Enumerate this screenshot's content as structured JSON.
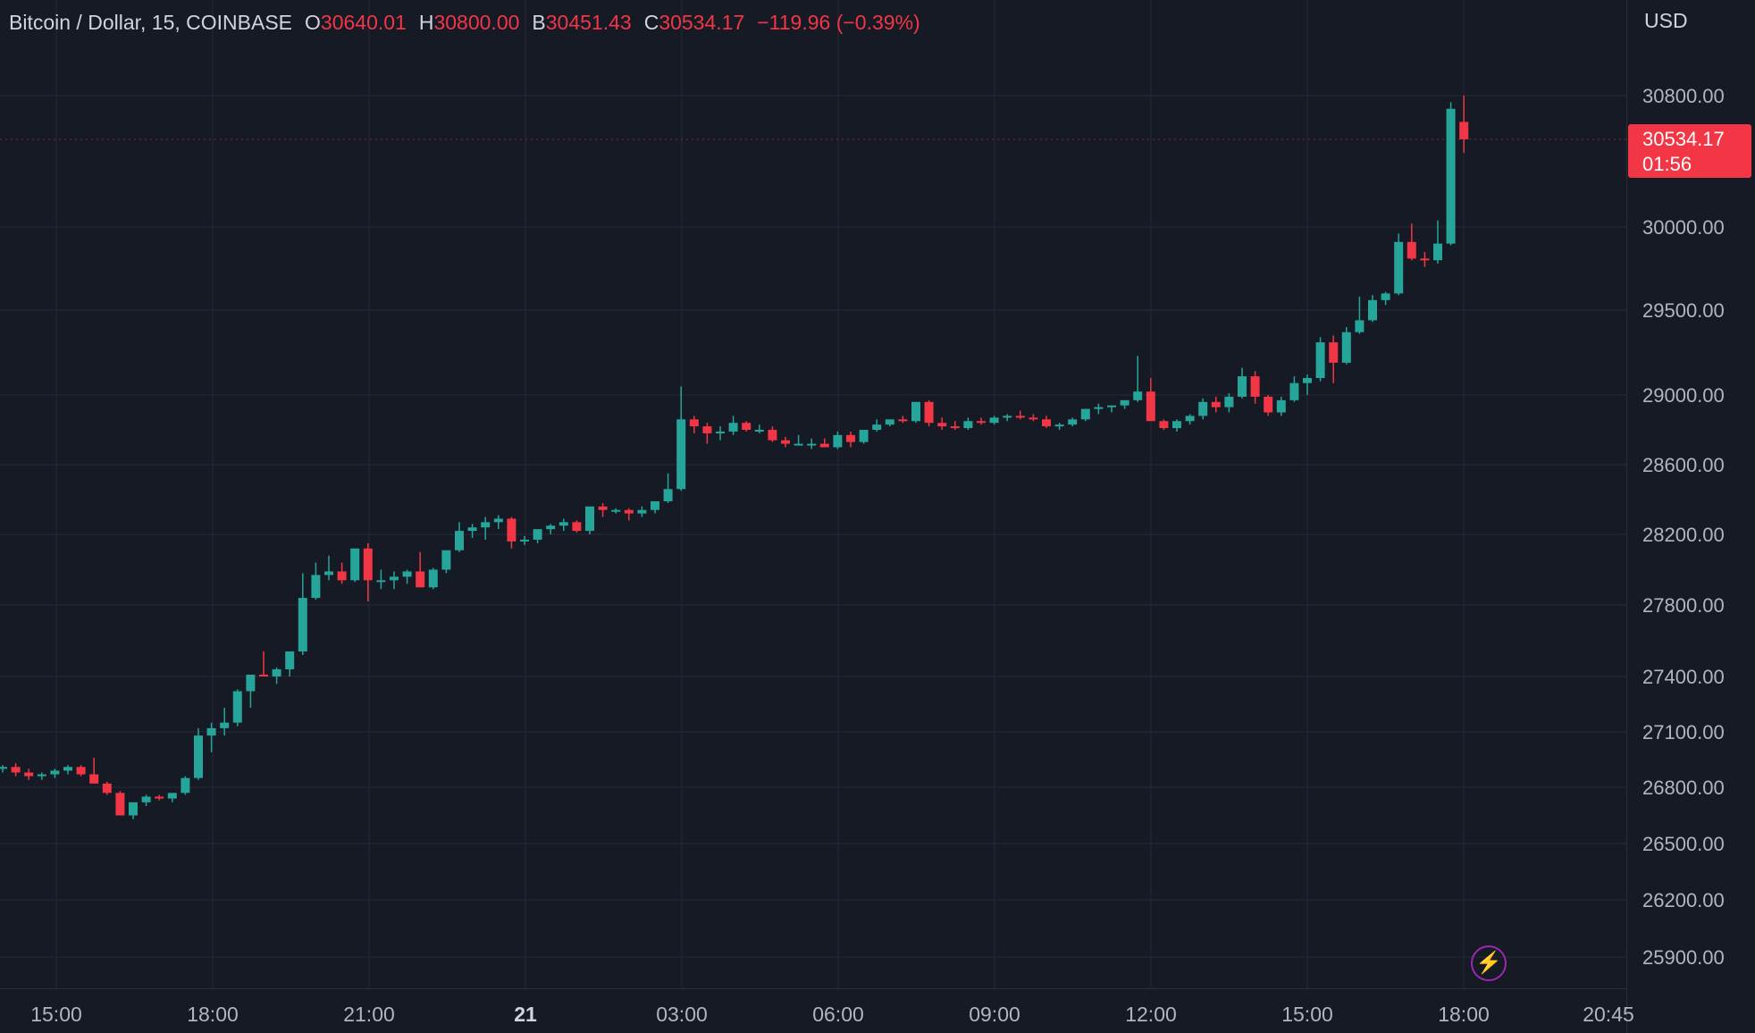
{
  "header": {
    "symbol": "Bitcoin / Dollar, 15, COINBASE",
    "open_label": "O",
    "open": "30640.01",
    "high_label": "H",
    "high": "30800.00",
    "low_label": "B",
    "low": "30451.43",
    "close_label": "C",
    "close": "30534.17",
    "change": "−119.96 (−0.39%)"
  },
  "currency": "USD",
  "last_price": {
    "price": "30534.17",
    "countdown": "01:56"
  },
  "colors": {
    "background": "#161a25",
    "up": "#26a69a",
    "down": "#f23645",
    "grid": "#242936"
  },
  "chart_data": {
    "type": "candlestick",
    "interval_minutes": 15,
    "price_ticks": [
      30800,
      30000,
      29500,
      29000,
      28600,
      28200,
      27800,
      27400,
      27100,
      26800,
      26500,
      26200,
      25900
    ],
    "price_tick_labels": [
      "30800.00",
      "30000.00",
      "29500.00",
      "29000.00",
      "28600.00",
      "28200.00",
      "27800.00",
      "27400.00",
      "27100.00",
      "26800.00",
      "26500.00",
      "26200.00",
      "25900.00"
    ],
    "time_ticks": [
      "15:00",
      "18:00",
      "21:00",
      "21",
      "03:00",
      "06:00",
      "09:00",
      "12:00",
      "15:00",
      "18:00",
      "20:45"
    ],
    "time_ticks_bold": [
      false,
      false,
      false,
      true,
      false,
      false,
      false,
      false,
      false,
      false,
      false
    ],
    "candles": [
      [
        26900,
        26920,
        26880,
        26910
      ],
      [
        26910,
        26930,
        26860,
        26880
      ],
      [
        26880,
        26900,
        26840,
        26860
      ],
      [
        26860,
        26880,
        26840,
        26870
      ],
      [
        26870,
        26900,
        26850,
        26890
      ],
      [
        26890,
        26920,
        26870,
        26910
      ],
      [
        26910,
        26920,
        26860,
        26870
      ],
      [
        26870,
        26960,
        26850,
        26820
      ],
      [
        26820,
        26830,
        26760,
        26770
      ],
      [
        26770,
        26780,
        26650,
        26650
      ],
      [
        26650,
        26700,
        26630,
        26720
      ],
      [
        26720,
        26760,
        26700,
        26750
      ],
      [
        26750,
        26760,
        26730,
        26740
      ],
      [
        26740,
        26760,
        26720,
        26770
      ],
      [
        26770,
        26860,
        26760,
        26850
      ],
      [
        26850,
        27120,
        26840,
        27080
      ],
      [
        27080,
        27150,
        26990,
        27120
      ],
      [
        27120,
        27230,
        27080,
        27150
      ],
      [
        27150,
        27330,
        27130,
        27320
      ],
      [
        27320,
        27390,
        27230,
        27410
      ],
      [
        27410,
        27540,
        27400,
        27400
      ],
      [
        27400,
        27450,
        27360,
        27440
      ],
      [
        27440,
        27510,
        27400,
        27540
      ],
      [
        27540,
        27980,
        27520,
        27840
      ],
      [
        27840,
        28040,
        27830,
        27970
      ],
      [
        27970,
        28080,
        27940,
        27990
      ],
      [
        27990,
        28040,
        27920,
        27940
      ],
      [
        27940,
        28120,
        27930,
        28120
      ],
      [
        28120,
        28150,
        27820,
        27940
      ],
      [
        27940,
        28000,
        27890,
        27940
      ],
      [
        27940,
        27990,
        27890,
        27960
      ],
      [
        27960,
        28000,
        27920,
        27990
      ],
      [
        27990,
        28100,
        27900,
        27900
      ],
      [
        27900,
        28010,
        27890,
        28000
      ],
      [
        28000,
        28110,
        27980,
        28110
      ],
      [
        28110,
        28270,
        28100,
        28220
      ],
      [
        28220,
        28260,
        28180,
        28240
      ],
      [
        28240,
        28300,
        28170,
        28270
      ],
      [
        28270,
        28310,
        28230,
        28290
      ],
      [
        28290,
        28300,
        28120,
        28160
      ],
      [
        28160,
        28190,
        28140,
        28170
      ],
      [
        28170,
        28220,
        28150,
        28230
      ],
      [
        28230,
        28260,
        28200,
        28250
      ],
      [
        28250,
        28290,
        28220,
        28270
      ],
      [
        28270,
        28280,
        28210,
        28220
      ],
      [
        28220,
        28360,
        28200,
        28360
      ],
      [
        28360,
        28380,
        28300,
        28340
      ],
      [
        28340,
        28350,
        28320,
        28340
      ],
      [
        28340,
        28350,
        28280,
        28320
      ],
      [
        28320,
        28360,
        28300,
        28340
      ],
      [
        28340,
        28380,
        28320,
        28390
      ],
      [
        28390,
        28550,
        28380,
        28460
      ],
      [
        28460,
        29050,
        28450,
        28860
      ],
      [
        28860,
        28880,
        28780,
        28820
      ],
      [
        28820,
        28840,
        28720,
        28780
      ],
      [
        28780,
        28820,
        28740,
        28790
      ],
      [
        28790,
        28880,
        28770,
        28840
      ],
      [
        28840,
        28850,
        28790,
        28800
      ],
      [
        28800,
        28830,
        28780,
        28800
      ],
      [
        28800,
        28820,
        28730,
        28740
      ],
      [
        28740,
        28760,
        28700,
        28720
      ],
      [
        28720,
        28770,
        28710,
        28720
      ],
      [
        28720,
        28750,
        28690,
        28720
      ],
      [
        28720,
        28750,
        28700,
        28700
      ],
      [
        28700,
        28790,
        28690,
        28770
      ],
      [
        28770,
        28790,
        28700,
        28730
      ],
      [
        28730,
        28800,
        28720,
        28800
      ],
      [
        28800,
        28860,
        28790,
        28830
      ],
      [
        28830,
        28850,
        28820,
        28860
      ],
      [
        28860,
        28880,
        28840,
        28850
      ],
      [
        28850,
        28960,
        28840,
        28960
      ],
      [
        28960,
        28970,
        28820,
        28840
      ],
      [
        28840,
        28870,
        28800,
        28820
      ],
      [
        28820,
        28850,
        28800,
        28810
      ],
      [
        28810,
        28870,
        28800,
        28850
      ],
      [
        28850,
        28870,
        28830,
        28840
      ],
      [
        28840,
        28880,
        28830,
        28870
      ],
      [
        28870,
        28890,
        28850,
        28880
      ],
      [
        28880,
        28910,
        28860,
        28870
      ],
      [
        28870,
        28890,
        28850,
        28860
      ],
      [
        28860,
        28880,
        28810,
        28820
      ],
      [
        28820,
        28840,
        28800,
        28830
      ],
      [
        28830,
        28870,
        28820,
        28860
      ],
      [
        28860,
        28920,
        28850,
        28920
      ],
      [
        28920,
        28950,
        28890,
        28930
      ],
      [
        28930,
        28940,
        28900,
        28940
      ],
      [
        28940,
        28970,
        28920,
        28970
      ],
      [
        28970,
        29230,
        28960,
        29020
      ],
      [
        29020,
        29100,
        28880,
        28850
      ],
      [
        28850,
        28860,
        28800,
        28810
      ],
      [
        28810,
        28860,
        28790,
        28850
      ],
      [
        28850,
        28890,
        28830,
        28880
      ],
      [
        28880,
        28980,
        28860,
        28960
      ],
      [
        28960,
        28990,
        28900,
        28930
      ],
      [
        28930,
        29010,
        28900,
        28990
      ],
      [
        28990,
        29160,
        28980,
        29110
      ],
      [
        29110,
        29140,
        28950,
        28990
      ],
      [
        28990,
        29000,
        28880,
        28900
      ],
      [
        28900,
        28990,
        28880,
        28970
      ],
      [
        28970,
        29110,
        28960,
        29070
      ],
      [
        29070,
        29120,
        29000,
        29100
      ],
      [
        29100,
        29340,
        29080,
        29310
      ],
      [
        29310,
        29350,
        29070,
        29190
      ],
      [
        29190,
        29400,
        29180,
        29370
      ],
      [
        29370,
        29580,
        29360,
        29440
      ],
      [
        29440,
        29590,
        29430,
        29560
      ],
      [
        29560,
        29610,
        29530,
        29600
      ],
      [
        29600,
        29960,
        29590,
        29910
      ],
      [
        29910,
        30020,
        29800,
        29810
      ],
      [
        29810,
        29850,
        29760,
        29800
      ],
      [
        29800,
        30040,
        29780,
        29900
      ],
      [
        29900,
        30760,
        29890,
        30720
      ],
      [
        30640,
        30800,
        30451,
        30534
      ]
    ]
  }
}
